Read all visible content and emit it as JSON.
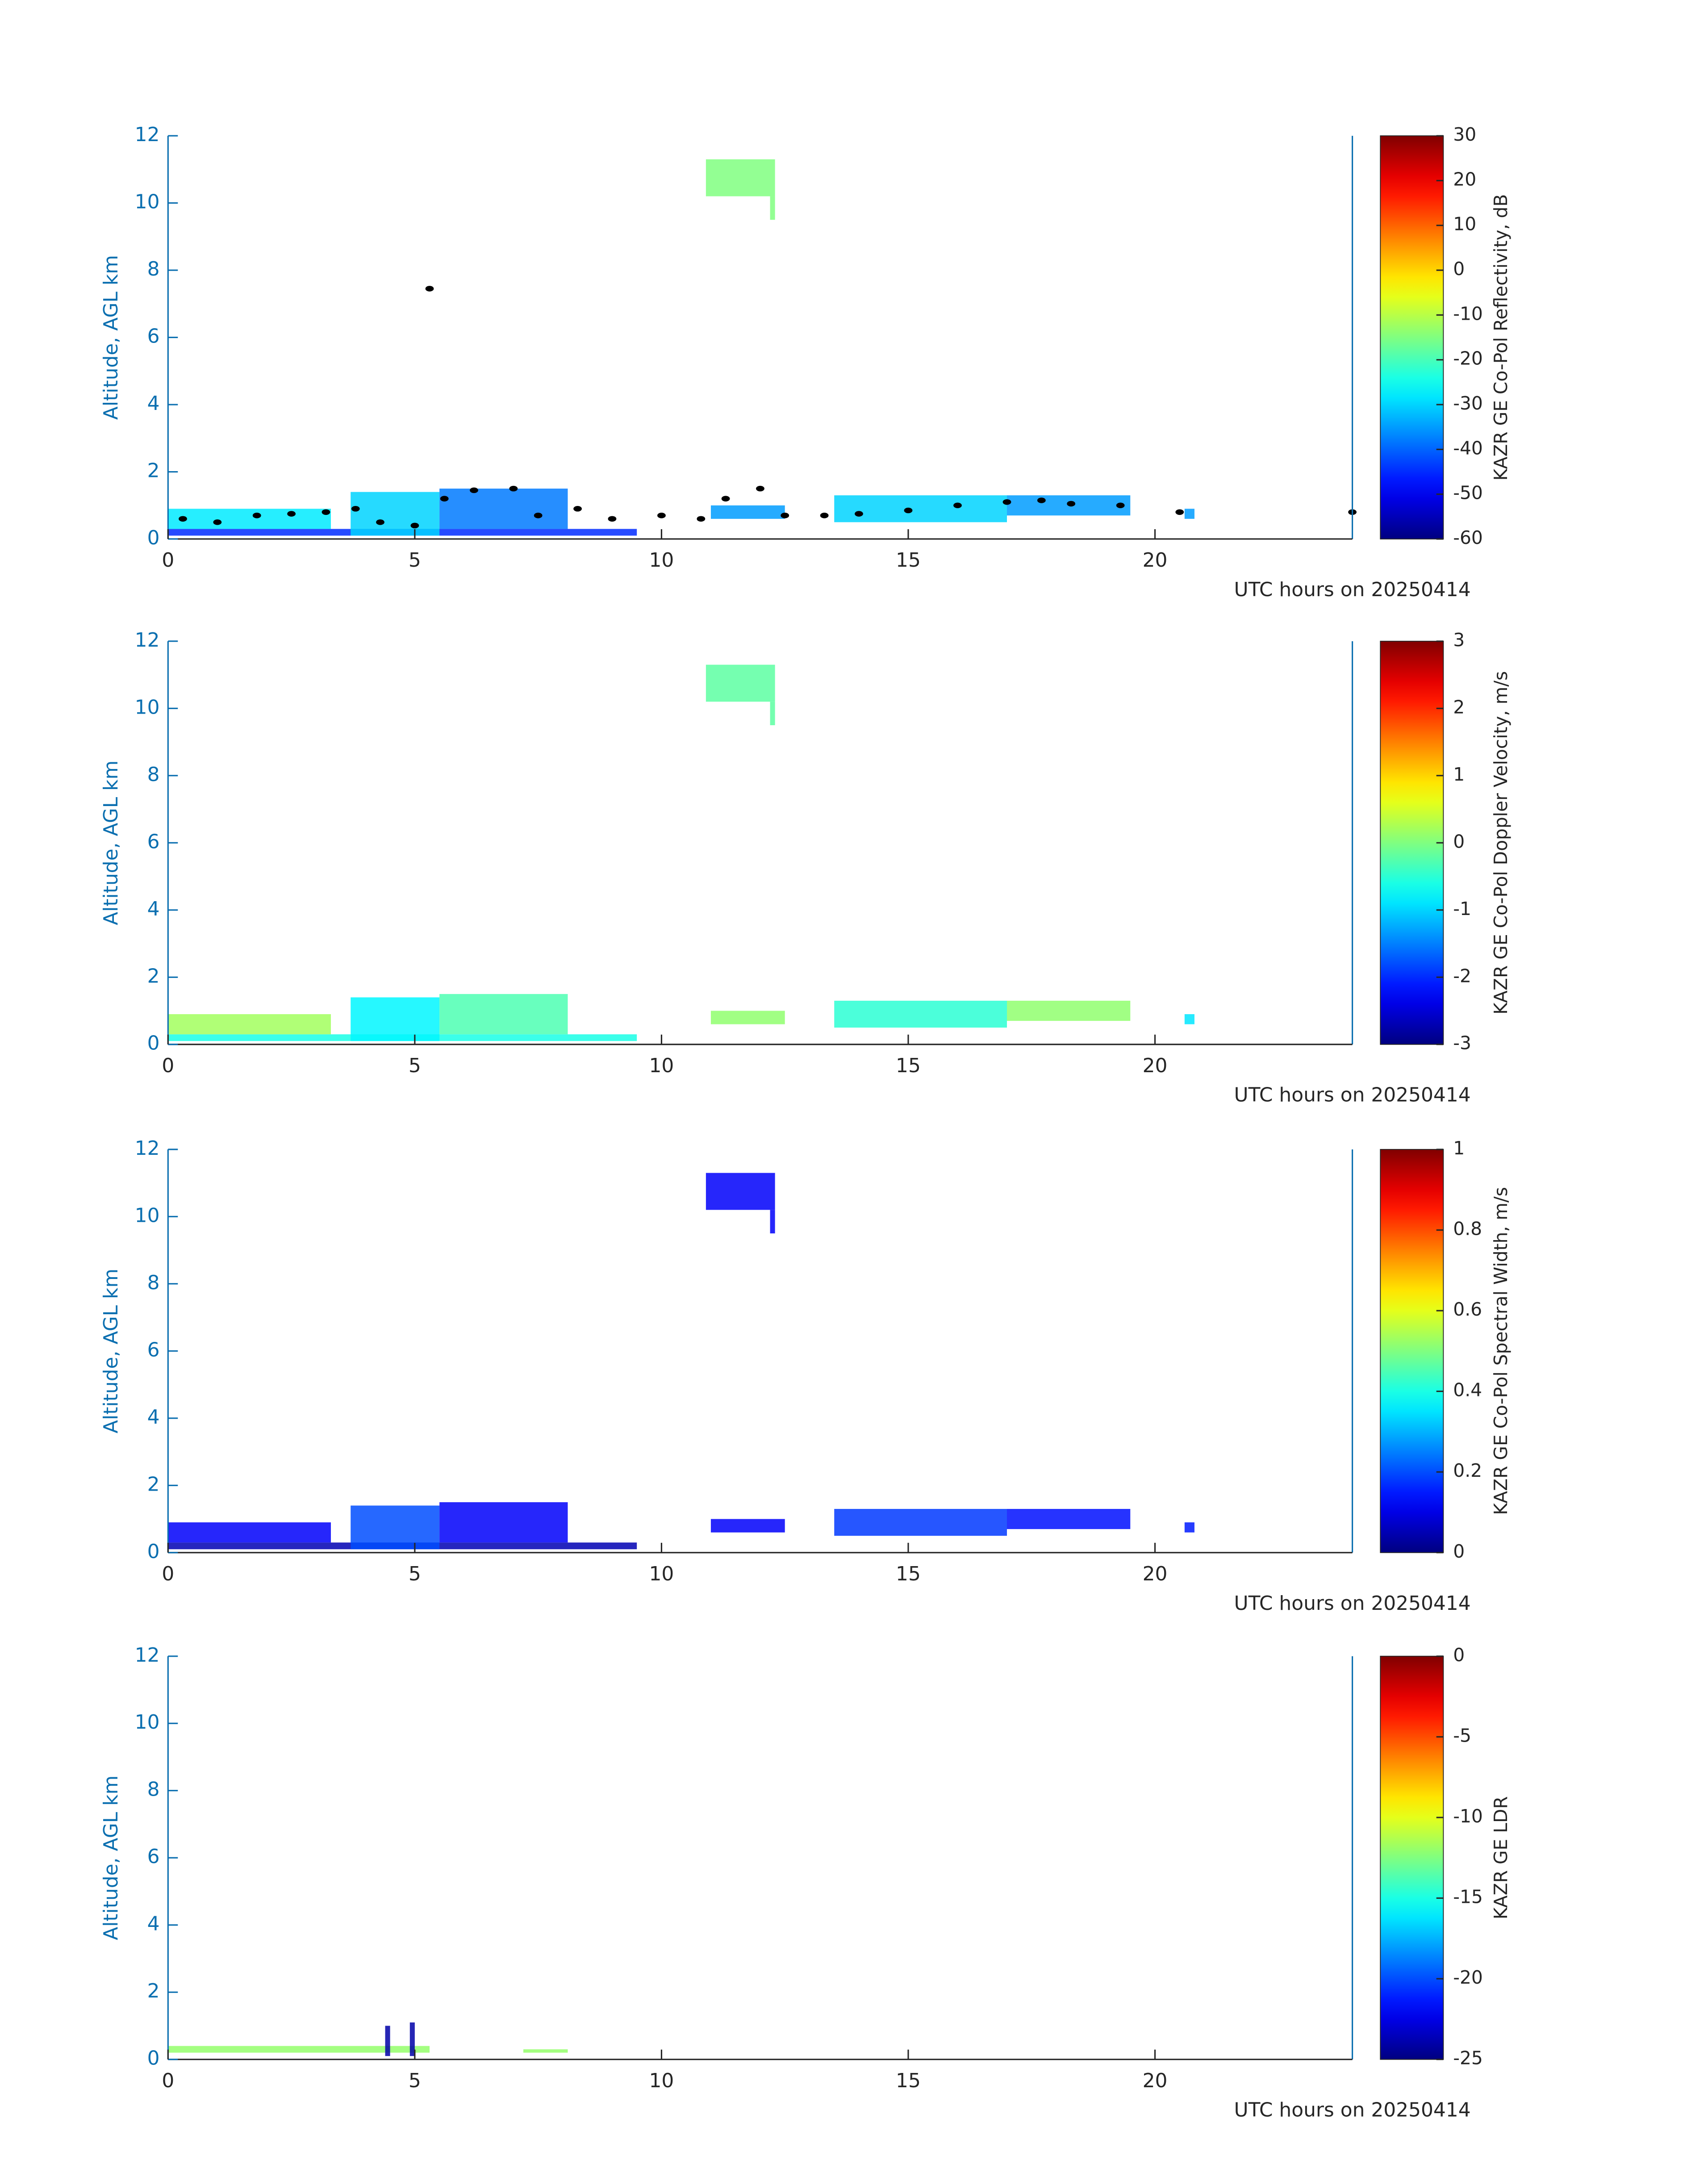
{
  "chart_data": [
    {
      "type": "heatmap",
      "xlabel": "UTC hours on 20250414",
      "ylabel": "Altitude, AGL km",
      "xlim": [
        0,
        24
      ],
      "xticks": [
        0,
        5,
        10,
        15,
        20
      ],
      "ylim": [
        0,
        12
      ],
      "yticks": [
        0,
        2,
        4,
        6,
        8,
        10,
        12
      ],
      "colormap": "jet",
      "colorbar": {
        "label": "KAZR GE Co-Pol Reflectivity, dB",
        "lim": [
          -60,
          30
        ],
        "ticks": [
          -60,
          -50,
          -40,
          -30,
          -20,
          -10,
          0,
          10,
          20,
          30
        ]
      },
      "echoes": [
        {
          "x": [
            0,
            9.5
          ],
          "y": [
            0.1,
            0.3
          ],
          "value": -45
        },
        {
          "x": [
            0,
            3.3
          ],
          "y": [
            0.3,
            0.9
          ],
          "value": -28
        },
        {
          "x": [
            3.7,
            5.5
          ],
          "y": [
            0.1,
            1.4
          ],
          "value": -30
        },
        {
          "x": [
            5.5,
            8.1
          ],
          "y": [
            0.3,
            1.5
          ],
          "value": -38
        },
        {
          "x": [
            10.9,
            12.3
          ],
          "y": [
            10.2,
            11.3
          ],
          "value": -15
        },
        {
          "x": [
            12.2,
            12.3
          ],
          "y": [
            9.5,
            10.2
          ],
          "value": -15
        },
        {
          "x": [
            11.0,
            12.5
          ],
          "y": [
            0.6,
            1.0
          ],
          "value": -35
        },
        {
          "x": [
            13.5,
            17
          ],
          "y": [
            0.5,
            1.3
          ],
          "value": -30
        },
        {
          "x": [
            17,
            19.5
          ],
          "y": [
            0.7,
            1.3
          ],
          "value": -35
        },
        {
          "x": [
            20.6,
            20.8
          ],
          "y": [
            0.6,
            0.9
          ],
          "value": -35
        }
      ],
      "points": {
        "color": "#000000",
        "x": [
          0.3,
          1,
          1.8,
          2.5,
          3.2,
          3.8,
          4.3,
          5,
          5.3,
          5.6,
          6.2,
          7,
          7.5,
          8.3,
          9,
          10,
          10.8,
          11.3,
          12,
          12.5,
          13.3,
          14,
          15,
          16,
          17,
          17.7,
          18.3,
          19.3,
          20.5,
          24
        ],
        "y": [
          0.6,
          0.5,
          0.7,
          0.75,
          0.8,
          0.9,
          0.5,
          0.4,
          7.45,
          1.2,
          1.45,
          1.5,
          0.7,
          0.9,
          0.6,
          0.7,
          0.6,
          1.2,
          1.5,
          0.7,
          0.7,
          0.75,
          0.85,
          1.0,
          1.1,
          1.15,
          1.05,
          1.0,
          0.8,
          0.8
        ]
      }
    },
    {
      "type": "heatmap",
      "xlabel": "UTC hours on 20250414",
      "ylabel": "Altitude, AGL km",
      "xlim": [
        0,
        24
      ],
      "xticks": [
        0,
        5,
        10,
        15,
        20
      ],
      "ylim": [
        0,
        12
      ],
      "yticks": [
        0,
        2,
        4,
        6,
        8,
        10,
        12
      ],
      "colormap": "jet",
      "colorbar": {
        "label": "KAZR GE Co-Pol Doppler Velocity, m/s",
        "lim": [
          -3,
          3
        ],
        "ticks": [
          -3,
          -2,
          -1,
          0,
          1,
          2,
          3
        ]
      },
      "echoes": [
        {
          "x": [
            0,
            9.5
          ],
          "y": [
            0.1,
            0.3
          ],
          "value": -0.6
        },
        {
          "x": [
            0,
            3.3
          ],
          "y": [
            0.3,
            0.9
          ],
          "value": 0.2
        },
        {
          "x": [
            3.7,
            5.5
          ],
          "y": [
            0.1,
            1.4
          ],
          "value": -0.8
        },
        {
          "x": [
            5.5,
            8.1
          ],
          "y": [
            0.3,
            1.5
          ],
          "value": -0.3
        },
        {
          "x": [
            10.9,
            12.3
          ],
          "y": [
            10.2,
            11.3
          ],
          "value": -0.2
        },
        {
          "x": [
            12.2,
            12.3
          ],
          "y": [
            9.5,
            10.2
          ],
          "value": -0.2
        },
        {
          "x": [
            11.0,
            12.5
          ],
          "y": [
            0.6,
            1.0
          ],
          "value": 0.1
        },
        {
          "x": [
            13.5,
            17
          ],
          "y": [
            0.5,
            1.3
          ],
          "value": -0.5
        },
        {
          "x": [
            17,
            19.5
          ],
          "y": [
            0.7,
            1.3
          ],
          "value": 0.1
        },
        {
          "x": [
            20.6,
            20.8
          ],
          "y": [
            0.6,
            0.9
          ],
          "value": -0.9
        }
      ]
    },
    {
      "type": "heatmap",
      "xlabel": "UTC hours on 20250414",
      "ylabel": "Altitude, AGL km",
      "xlim": [
        0,
        24
      ],
      "xticks": [
        0,
        5,
        10,
        15,
        20
      ],
      "ylim": [
        0,
        12
      ],
      "yticks": [
        0,
        2,
        4,
        6,
        8,
        10,
        12
      ],
      "colormap": "jet",
      "colorbar": {
        "label": "KAZR GE Co-Pol Spectral Width, m/s",
        "lim": [
          0,
          1
        ],
        "ticks": [
          0,
          0.2,
          0.4,
          0.6,
          0.8,
          1
        ]
      },
      "echoes": [
        {
          "x": [
            0,
            9.5
          ],
          "y": [
            0.1,
            0.3
          ],
          "value": 0.05
        },
        {
          "x": [
            0,
            3.3
          ],
          "y": [
            0.3,
            0.9
          ],
          "value": 0.12
        },
        {
          "x": [
            3.7,
            5.5
          ],
          "y": [
            0.1,
            1.4
          ],
          "value": 0.2
        },
        {
          "x": [
            5.5,
            8.1
          ],
          "y": [
            0.3,
            1.5
          ],
          "value": 0.12
        },
        {
          "x": [
            10.9,
            12.3
          ],
          "y": [
            10.2,
            11.3
          ],
          "value": 0.12
        },
        {
          "x": [
            12.2,
            12.3
          ],
          "y": [
            9.5,
            10.2
          ],
          "value": 0.12
        },
        {
          "x": [
            11.0,
            12.5
          ],
          "y": [
            0.6,
            1.0
          ],
          "value": 0.12
        },
        {
          "x": [
            13.5,
            17
          ],
          "y": [
            0.5,
            1.3
          ],
          "value": 0.18
        },
        {
          "x": [
            17,
            19.5
          ],
          "y": [
            0.7,
            1.3
          ],
          "value": 0.14
        },
        {
          "x": [
            20.6,
            20.8
          ],
          "y": [
            0.6,
            0.9
          ],
          "value": 0.15
        }
      ]
    },
    {
      "type": "heatmap",
      "xlabel": "UTC hours on 20250414",
      "ylabel": "Altitude, AGL km",
      "xlim": [
        0,
        24
      ],
      "xticks": [
        0,
        5,
        10,
        15,
        20
      ],
      "ylim": [
        0,
        12
      ],
      "yticks": [
        0,
        2,
        4,
        6,
        8,
        10,
        12
      ],
      "colormap": "jet",
      "colorbar": {
        "label": "KAZR GE LDR",
        "lim": [
          -25,
          0
        ],
        "ticks": [
          -25,
          -20,
          -15,
          -10,
          -5,
          0
        ]
      },
      "echoes": [
        {
          "x": [
            0,
            5.3
          ],
          "y": [
            0.2,
            0.4
          ],
          "value": -12
        },
        {
          "x": [
            4.4,
            4.5
          ],
          "y": [
            0.1,
            1.0
          ],
          "value": -24
        },
        {
          "x": [
            4.9,
            5.0
          ],
          "y": [
            0.1,
            1.1
          ],
          "value": -24
        },
        {
          "x": [
            7.2,
            8.1
          ],
          "y": [
            0.2,
            0.3
          ],
          "value": -12
        }
      ]
    }
  ]
}
